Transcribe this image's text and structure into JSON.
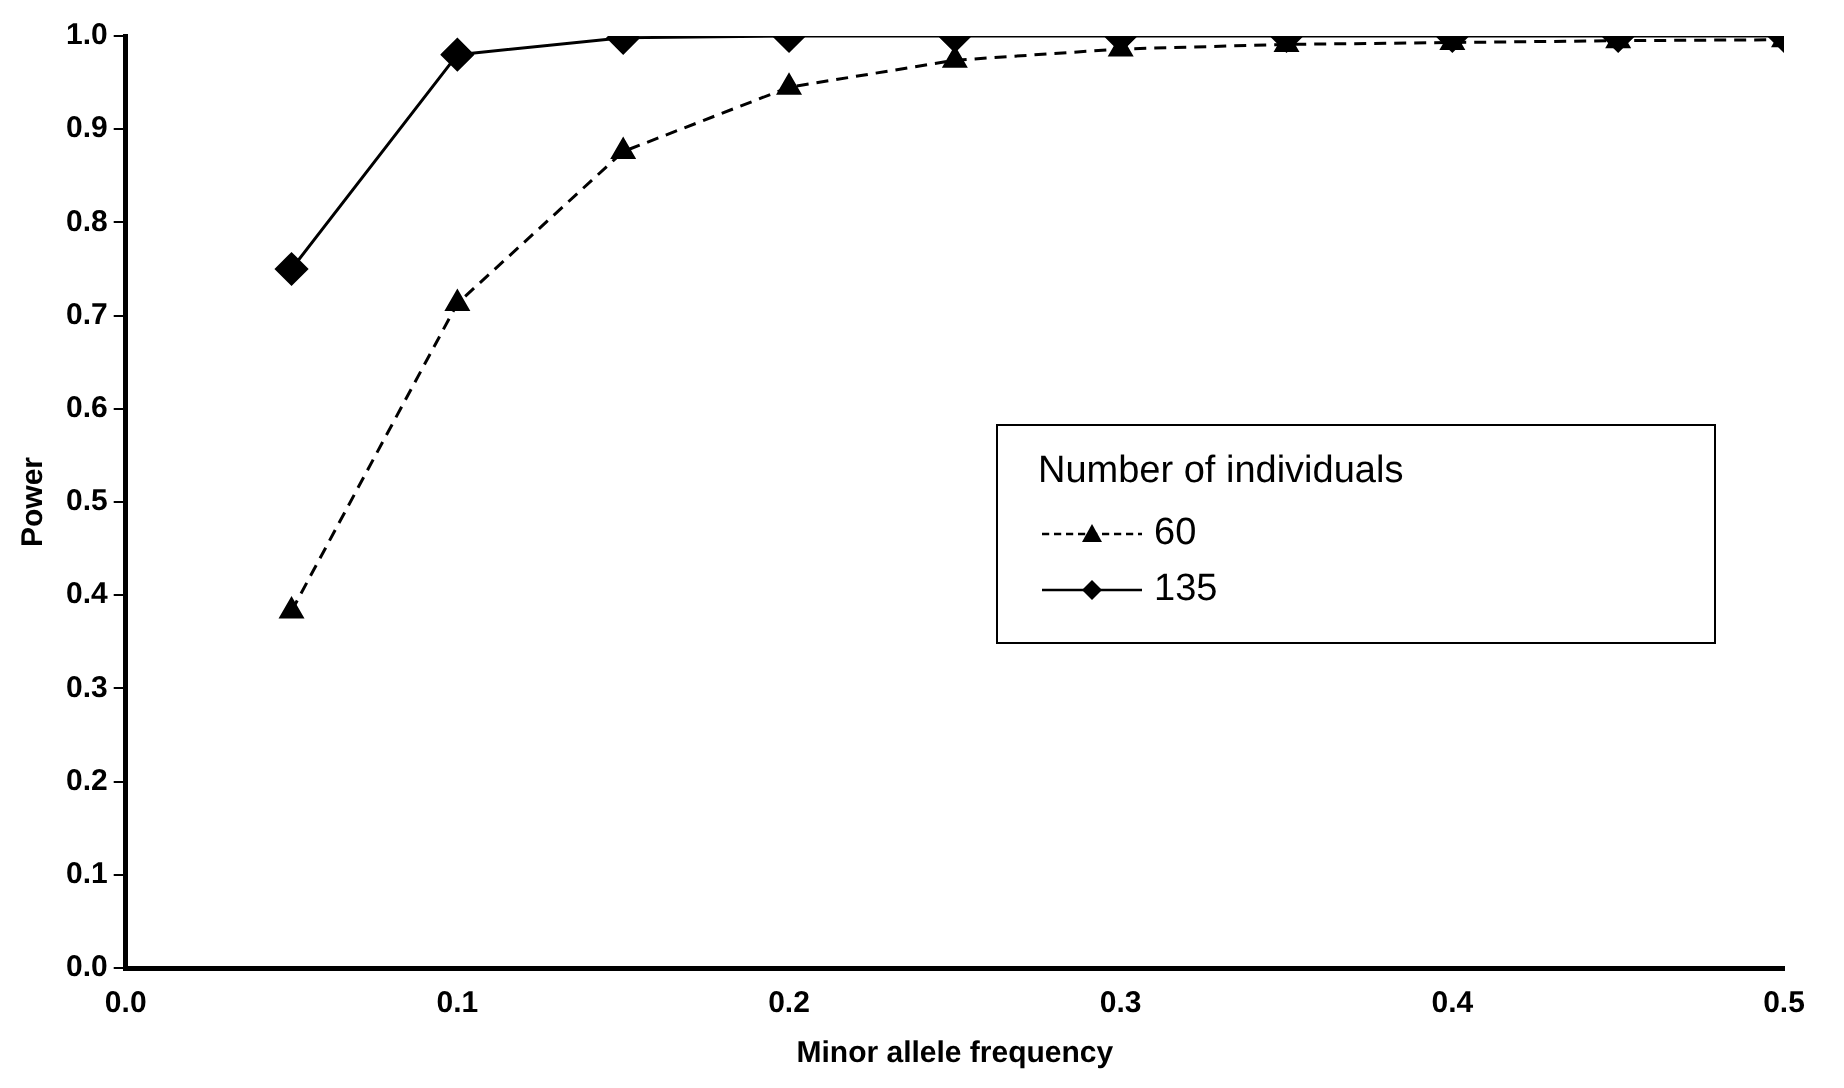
{
  "chart_data": {
    "type": "line",
    "xlabel": "Minor allele frequency",
    "ylabel": "Power",
    "legend_title": "Number of individuals",
    "legend": "right",
    "x": [
      0.05,
      0.1,
      0.15,
      0.2,
      0.25,
      0.3,
      0.35,
      0.4,
      0.45,
      0.5
    ],
    "series": [
      {
        "name": "60",
        "color": "#000000",
        "marker": "triangle",
        "line_style": "dashed",
        "values": [
          0.383,
          0.713,
          0.876,
          0.945,
          0.974,
          0.986,
          0.991,
          0.993,
          0.995,
          0.996
        ]
      },
      {
        "name": "135",
        "color": "#000000",
        "marker": "diamond",
        "line_style": "solid",
        "values": [
          0.75,
          0.98,
          0.998,
          1.0,
          1.0,
          1.0,
          1.0,
          1.0,
          1.0,
          1.0
        ]
      }
    ],
    "xlim": [
      0,
      0.5
    ],
    "ylim": [
      0,
      1
    ],
    "xticks": [
      {
        "value": 0,
        "label": "0.0"
      },
      0.1,
      0.2,
      0.3,
      0.4,
      0.5
    ],
    "yticks": [
      {
        "value": 0,
        "label": "0.0"
      },
      0.1,
      0.2,
      0.3,
      0.4,
      0.5,
      0.6,
      0.7,
      0.8,
      0.9,
      {
        "value": 1,
        "label": "1.0"
      }
    ]
  }
}
